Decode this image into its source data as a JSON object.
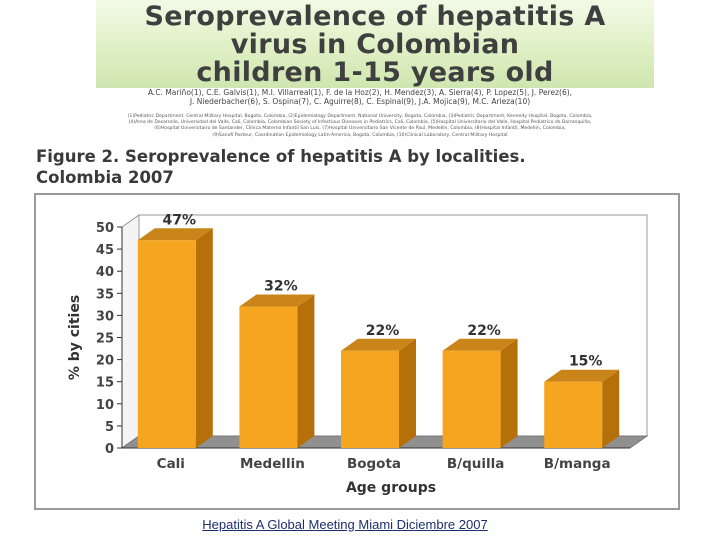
{
  "poster": {
    "title_lines": [
      "Seroprevalence of hepatitis A",
      "virus in Colombian",
      "children 1-15 years old"
    ],
    "authors_lines": [
      "A.C. Mariño(1), C.E. Galvis(1), M.I. Villarreal(1), F. de la Hoz(2), H. Mendez(3), A. Sierra(4), P. Lopez(5), J. Perez(6),",
      "J. Niederbacher(6), S. Ospina(7), C. Aguirre(8), C. Espinal(9), J.A. Mojica(9), M.C. Arieza(10)"
    ],
    "affiliations_lines": [
      "(1)Pediatric Department, Central Military Hospital, Bogota, Colombia, (2)Epidemiology Department, National University, Bogota, Colombia, (3)Pediatric Department, Kennedy Hospital, Bogota, Colombia,",
      "(4)Area de Desarrollo, Universidad del Valle, Cali, Colombia, Colombian Society of Infectious Diseases in Pediatrics, Cali, Colombia, (5)Hospital Universitario del Valle, Hospital Pediatrico de Barranquilla,",
      "(6)Hospital Universitario de Santander, Clinica Materno Infantil San Luis, (7)Hospital Universitario San Vicente de Paul, Medellin, Colombia, (8)Hospital Infantil, Medellin, Colombia,",
      "(9)Sanofi Pasteur, Coordination Epidemiology Latin-America, Bogota, Colombia, (10)Clinical Laboratory, Central Military Hospital"
    ]
  },
  "figure": {
    "caption_lines": [
      "Figure 2. Seroprevalence of hepatitis A by localities.",
      "Colombia 2007"
    ]
  },
  "chart_data": {
    "type": "bar",
    "categories": [
      "Cali",
      "Medellin",
      "Bogota",
      "B/quilla",
      "B/manga"
    ],
    "values": [
      47,
      32,
      22,
      22,
      15
    ],
    "data_labels": [
      "47%",
      "32%",
      "22%",
      "22%",
      "15%"
    ],
    "xlabel": "Age groups",
    "ylabel": "% by cities",
    "ylim": [
      0,
      50
    ],
    "yticks": [
      0,
      5,
      10,
      15,
      20,
      25,
      30,
      35,
      40,
      45,
      50
    ],
    "grid": false,
    "colors": {
      "bar_front": "#f5a51f",
      "bar_side": "#b5700a",
      "bar_top": "#c98519",
      "wall": "#ffffff",
      "floor": "#909090"
    }
  },
  "footer": {
    "text": "Hepatitis A Global Meeting Miami Diciembre 2007"
  }
}
